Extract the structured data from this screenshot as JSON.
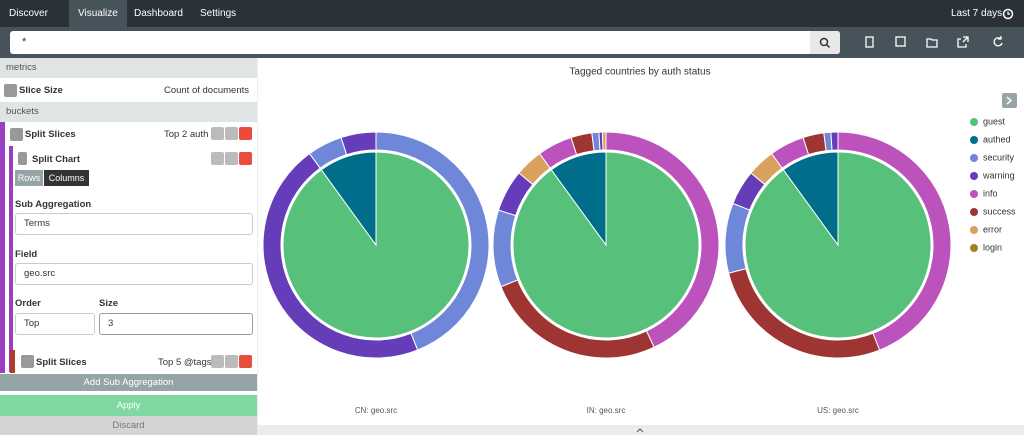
{
  "nav": {
    "tabs": [
      "Discover",
      "Visualize",
      "Dashboard",
      "Settings"
    ],
    "time": "Last 7 days"
  },
  "search": {
    "query": "*"
  },
  "sidebar": {
    "metrics_header": "metrics",
    "slice_size": {
      "label": "Slice Size",
      "value": "Count of documents"
    },
    "buckets_header": "buckets",
    "split_slices": {
      "label": "Split Slices",
      "summary": "Top 2 auth"
    },
    "split_chart": {
      "label": "Split Chart",
      "toggle": [
        "Rows",
        "Columns"
      ]
    },
    "sub_aggregation": {
      "label": "Sub Aggregation",
      "value": "Terms"
    },
    "field": {
      "label": "Field",
      "value": "geo.src"
    },
    "order": {
      "label": "Order",
      "value": "Top"
    },
    "size": {
      "label": "Size",
      "value": "3"
    },
    "split_slices_2": {
      "label": "Split Slices",
      "summary": "Top 5 @tags"
    },
    "add_sub": "Add Sub Aggregation",
    "apply": "Apply",
    "discard": "Discard"
  },
  "chart_data": {
    "type": "pie",
    "title": "Tagged countries by auth status",
    "legend": {
      "names": [
        "guest",
        "authed",
        "security",
        "warning",
        "info",
        "success",
        "error",
        "login"
      ],
      "colors": [
        "#57c17b",
        "#006e8a",
        "#6f87d8",
        "#663db8",
        "#bc52bc",
        "#9e3533",
        "#daa05d",
        "#a08028"
      ]
    },
    "charts": [
      {
        "label": "CN: geo.src",
        "inner": {
          "categories": [
            "guest",
            "authed"
          ],
          "values": [
            90,
            10
          ]
        },
        "outer": {
          "categories": [
            "security",
            "warning",
            "security",
            "warning"
          ],
          "values": [
            44,
            46,
            5,
            5
          ]
        }
      },
      {
        "label": "IN: geo.src",
        "inner": {
          "categories": [
            "guest",
            "authed"
          ],
          "values": [
            90,
            10
          ]
        },
        "outer": {
          "categories": [
            "info",
            "success",
            "security",
            "warning",
            "error",
            "info",
            "success",
            "security",
            "warning",
            "error"
          ],
          "values": [
            43,
            26,
            11,
            6,
            4,
            5,
            3,
            1,
            0.5,
            0.5
          ]
        }
      },
      {
        "label": "US: geo.src",
        "inner": {
          "categories": [
            "guest",
            "authed"
          ],
          "values": [
            90,
            10
          ]
        },
        "outer": {
          "categories": [
            "info",
            "success",
            "security",
            "warning",
            "error",
            "info",
            "success",
            "security",
            "warning"
          ],
          "values": [
            44,
            27,
            10,
            5,
            4,
            5,
            3,
            1,
            1
          ]
        }
      }
    ]
  }
}
